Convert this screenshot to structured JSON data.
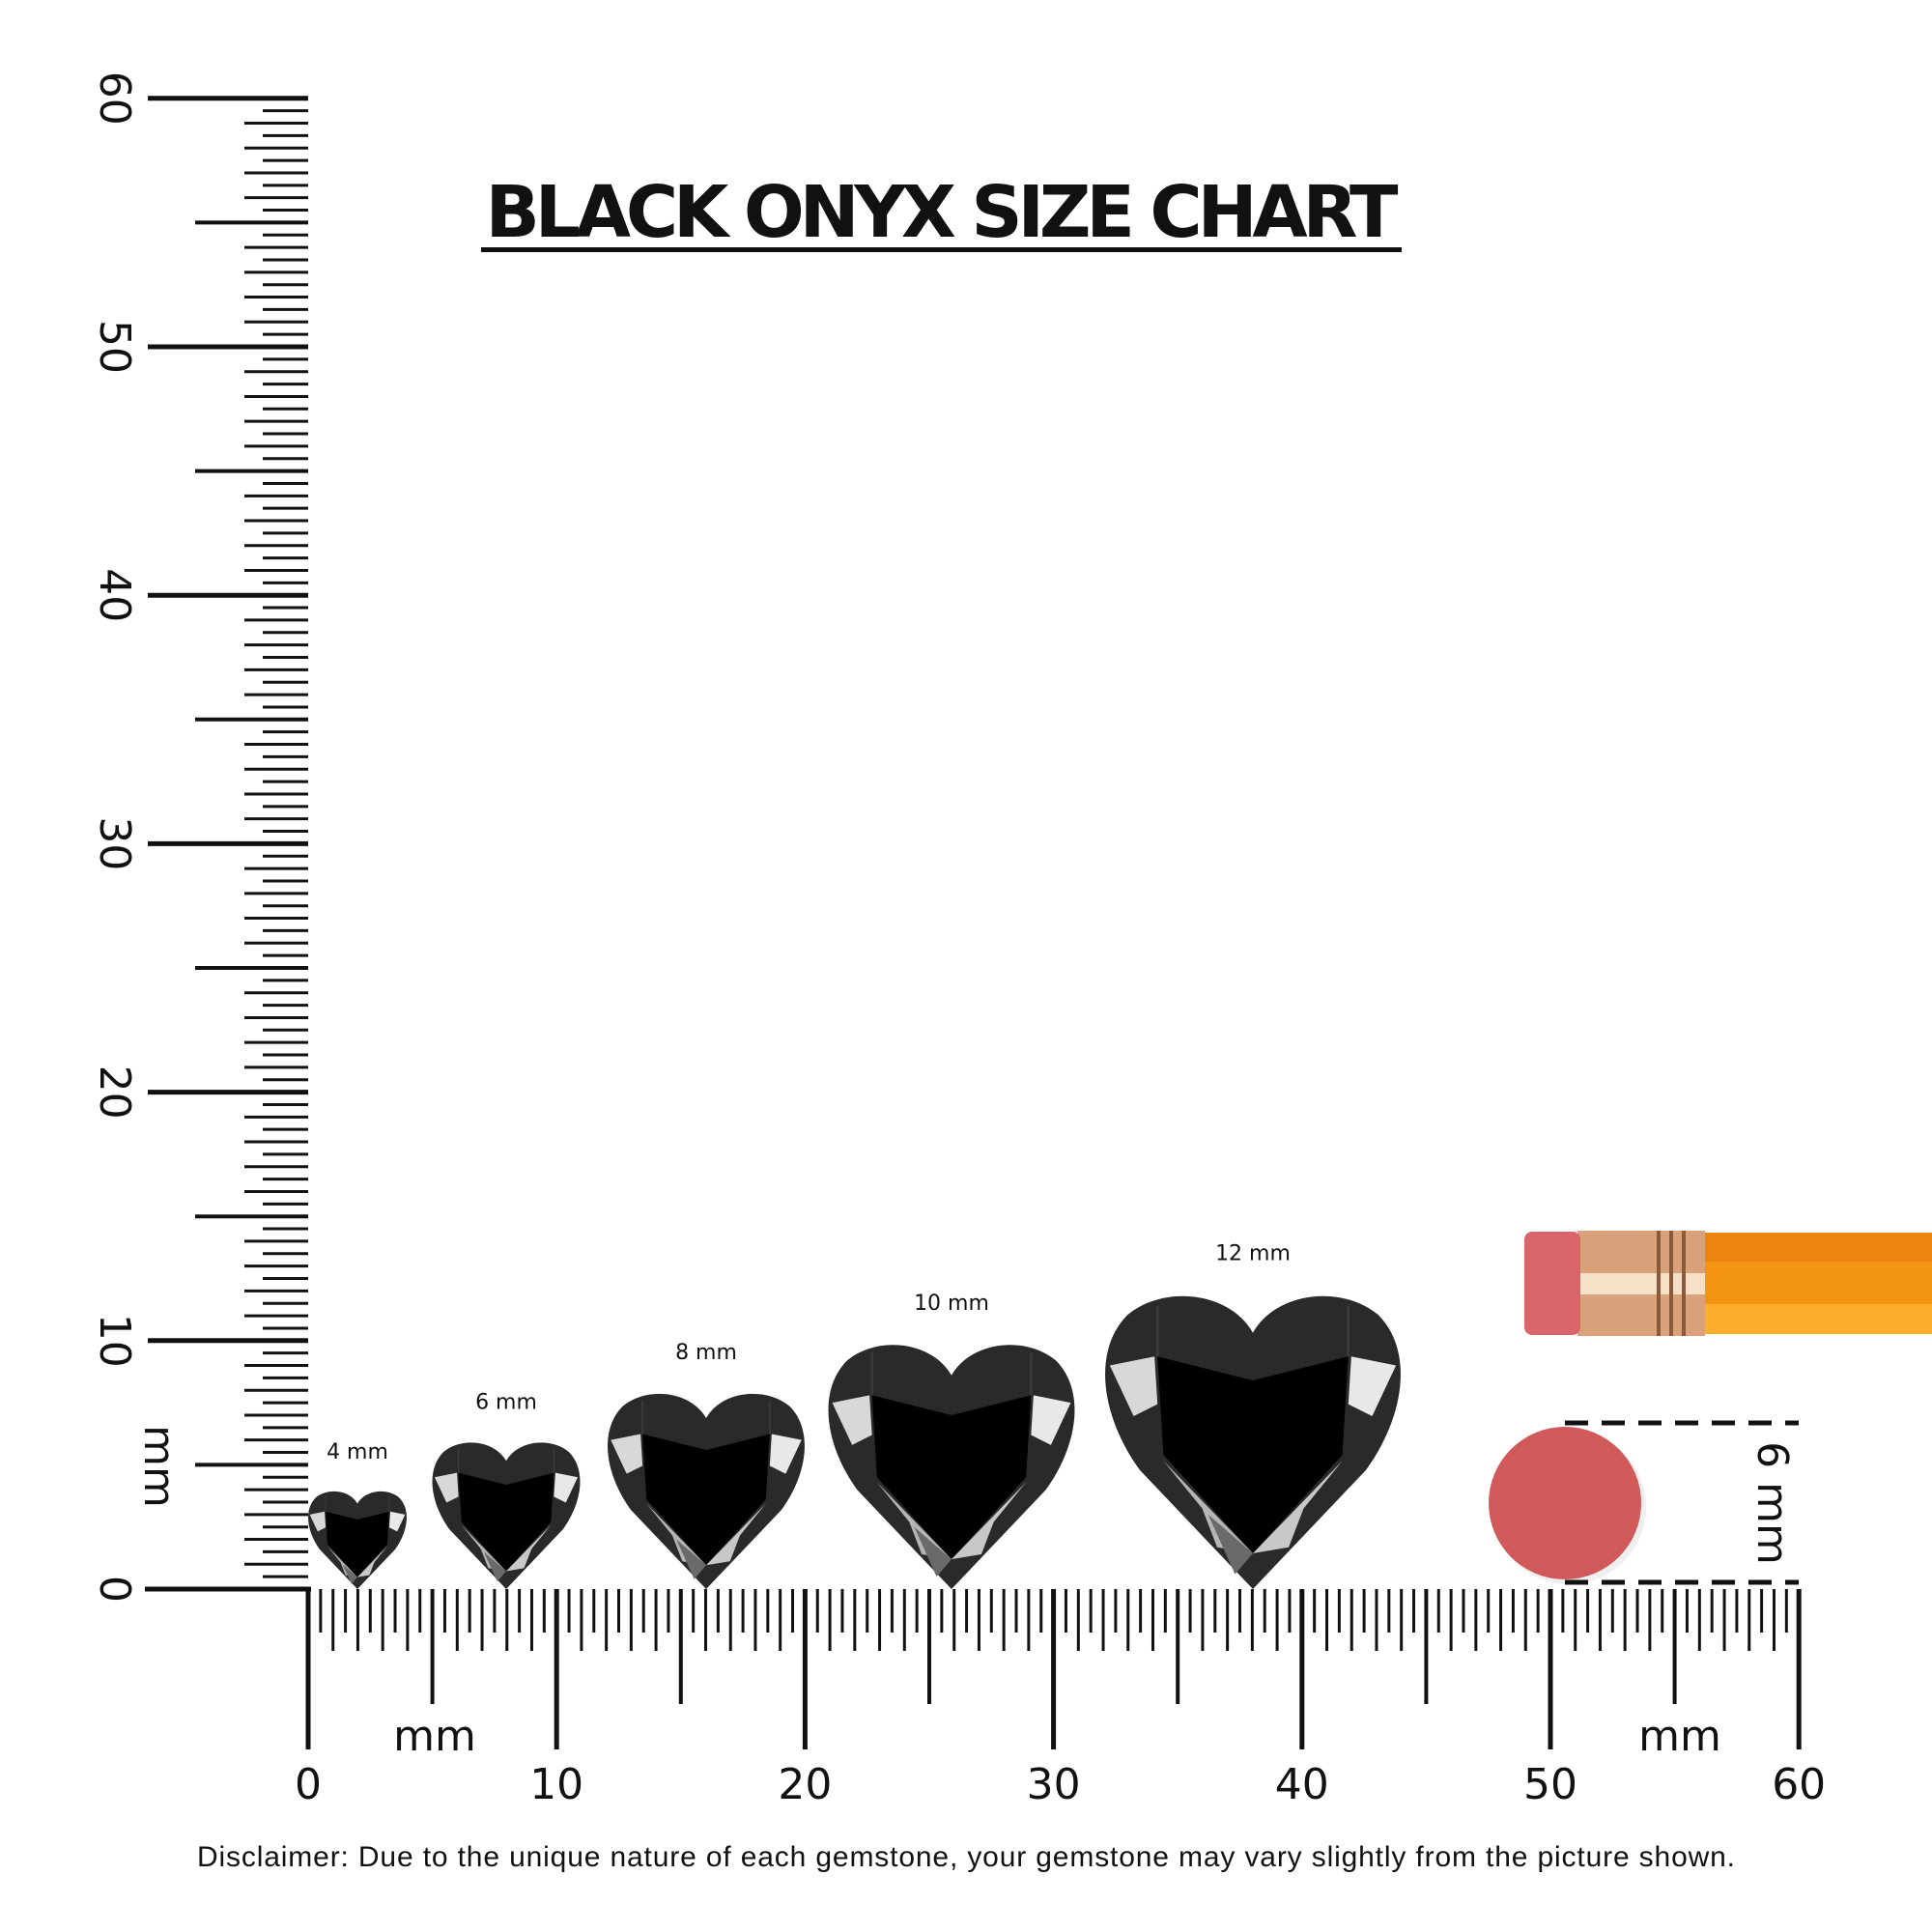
{
  "title": "BLACK ONYX SIZE CHART",
  "unit_label": "mm",
  "vertical_ruler": {
    "unit": "mm",
    "ticks": [
      "0",
      "10",
      "20",
      "30",
      "40",
      "50",
      "60"
    ]
  },
  "horizontal_ruler": {
    "unit": "mm",
    "ticks": [
      "0",
      "10",
      "20",
      "30",
      "40",
      "50",
      "60"
    ]
  },
  "stones": [
    {
      "label": "4 mm",
      "size_mm": 4
    },
    {
      "label": "6 mm",
      "size_mm": 6
    },
    {
      "label": "8 mm",
      "size_mm": 8
    },
    {
      "label": "10 mm",
      "size_mm": 10
    },
    {
      "label": "12 mm",
      "size_mm": 12
    }
  ],
  "reference": {
    "label": "6 mm",
    "object": "pencil eraser",
    "size_mm": 6
  },
  "colors": {
    "eraser": "#d05a5a",
    "pencil": "#f39512",
    "ferrule": "#d9a27a",
    "stone": "#2a2a2a"
  },
  "disclaimer": "Disclaimer: Due to the unique nature of each gemstone, your gemstone may vary slightly from the picture shown."
}
